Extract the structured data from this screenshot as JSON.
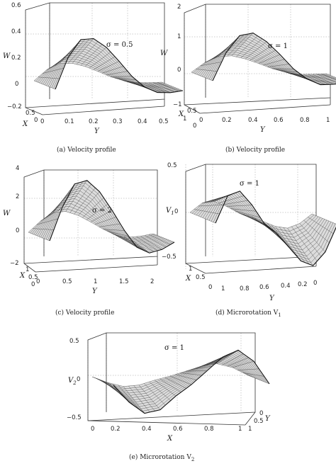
{
  "figure": {
    "panels": [
      {
        "id": "a",
        "caption": "(a)  Velocity profile",
        "zlabel": "W",
        "ylabel": "Y",
        "xlabel": "X",
        "sigma_text": "σ = 0.5",
        "zticks": [
          "0.6",
          "0.4",
          "0.2",
          "0",
          "−0.2"
        ],
        "yticks": [
          "0",
          "0.1",
          "0.2",
          "0.3",
          "0.4",
          "0.5"
        ],
        "xticks": [
          "0.5",
          "0"
        ],
        "x_end": "0"
      },
      {
        "id": "b",
        "caption": "(b)  Velocity profile",
        "zlabel": "W",
        "ylabel": "Y",
        "xlabel": "X",
        "sigma_text": "σ = 1",
        "zticks": [
          "2",
          "1",
          "0",
          "−1"
        ],
        "yticks": [
          "0",
          "0.2",
          "0.4",
          "0.6",
          "0.8",
          "1"
        ],
        "xticks": [
          "1",
          "0.5",
          "0"
        ]
      },
      {
        "id": "c",
        "caption": "(c)  Velocity profile",
        "zlabel": "W",
        "ylabel": "Y",
        "xlabel": "X",
        "sigma_text": "σ = 2",
        "zticks": [
          "4",
          "2",
          "0",
          "−2"
        ],
        "yticks": [
          "0",
          "0.5",
          "1",
          "1.5",
          "2"
        ],
        "xticks": [
          "1",
          "0.5",
          "0"
        ]
      },
      {
        "id": "d",
        "caption": "(d)  Microrotation V",
        "caption_sub": "1",
        "zlabel": "V",
        "zlabel_sub": "1",
        "ylabel": "Y",
        "xlabel": "X",
        "sigma_text": "σ = 1",
        "zticks": [
          "0.5",
          "0",
          "−0.5"
        ],
        "yticks": [
          "1",
          "0.8",
          "0.6",
          "0.4",
          "0.2",
          "0"
        ],
        "xticks": [
          "1",
          "0.5",
          "0"
        ]
      },
      {
        "id": "e",
        "caption": "(e)  Microrotation V",
        "caption_sub": "2",
        "zlabel": "V",
        "zlabel_sub": "2",
        "ylabel": "Y",
        "xlabel": "X",
        "sigma_text": "σ = 1",
        "zticks": [
          "0.5",
          "0",
          "−0.5"
        ],
        "xticks": [
          "0",
          "0.2",
          "0.4",
          "0.6",
          "0.8",
          "1"
        ],
        "yticks": [
          "1",
          "0.5",
          "0"
        ]
      }
    ]
  },
  "chart_data": [
    {
      "type": "surface",
      "panel": "a",
      "sigma": 0.5,
      "zlabel": "W",
      "ylabel": "Y",
      "xlabel": "X",
      "y_range": [
        0,
        0.5
      ],
      "x_range": [
        0,
        0.5
      ],
      "z_range": [
        -0.2,
        0.6
      ],
      "profile_y": [
        0,
        0.05,
        0.1,
        0.15,
        0.2,
        0.25,
        0.3,
        0.35,
        0.4,
        0.45,
        0.5
      ],
      "profile_w_max": [
        0,
        0.3,
        0.47,
        0.48,
        0.4,
        0.27,
        0.13,
        0.03,
        -0.02,
        -0.02,
        0
      ]
    },
    {
      "type": "surface",
      "panel": "b",
      "sigma": 1,
      "zlabel": "W",
      "ylabel": "Y",
      "xlabel": "X",
      "y_range": [
        0,
        1
      ],
      "x_range": [
        0,
        1
      ],
      "z_range": [
        -1,
        2
      ],
      "profile_y": [
        0,
        0.1,
        0.2,
        0.3,
        0.4,
        0.5,
        0.6,
        0.7,
        0.8,
        0.9,
        1
      ],
      "profile_w_max": [
        0,
        1.0,
        1.6,
        1.7,
        1.4,
        0.95,
        0.45,
        0.1,
        -0.1,
        -0.08,
        0
      ]
    },
    {
      "type": "surface",
      "panel": "c",
      "sigma": 2,
      "zlabel": "W",
      "ylabel": "Y",
      "xlabel": "X",
      "y_range": [
        0,
        2
      ],
      "x_range": [
        0,
        1
      ],
      "z_range": [
        -2,
        4
      ],
      "profile_y": [
        0,
        0.2,
        0.4,
        0.6,
        0.8,
        1.0,
        1.2,
        1.4,
        1.6,
        1.8,
        2.0
      ],
      "profile_w_max": [
        0,
        1.8,
        3.1,
        3.3,
        2.7,
        1.7,
        0.6,
        -0.3,
        -0.6,
        -0.4,
        0
      ]
    },
    {
      "type": "surface",
      "panel": "d",
      "sigma": 1,
      "zlabel": "V1",
      "ylabel": "Y",
      "xlabel": "X",
      "y_range": [
        0,
        1
      ],
      "x_range": [
        0,
        1
      ],
      "z_range": [
        -0.5,
        0.5
      ],
      "profile_y": [
        0,
        0.1,
        0.2,
        0.3,
        0.4,
        0.5,
        0.6,
        0.7,
        0.8,
        0.9,
        1
      ],
      "profile_v_max": [
        0,
        0.3,
        0.35,
        0.2,
        0.0,
        -0.1,
        -0.25,
        -0.4,
        -0.45,
        -0.3,
        0
      ]
    },
    {
      "type": "surface",
      "panel": "e",
      "sigma": 1,
      "zlabel": "V2",
      "ylabel": "Y",
      "xlabel": "X",
      "x_range": [
        0,
        1
      ],
      "y_range": [
        0,
        1
      ],
      "z_range": [
        -0.5,
        0.5
      ],
      "profile_x": [
        0,
        0.1,
        0.2,
        0.3,
        0.4,
        0.5,
        0.6,
        0.7,
        0.8,
        0.9,
        1
      ],
      "profile_v_max": [
        0,
        -0.15,
        -0.25,
        -0.22,
        -0.1,
        0.0,
        0.12,
        0.24,
        0.3,
        0.2,
        0
      ]
    }
  ]
}
